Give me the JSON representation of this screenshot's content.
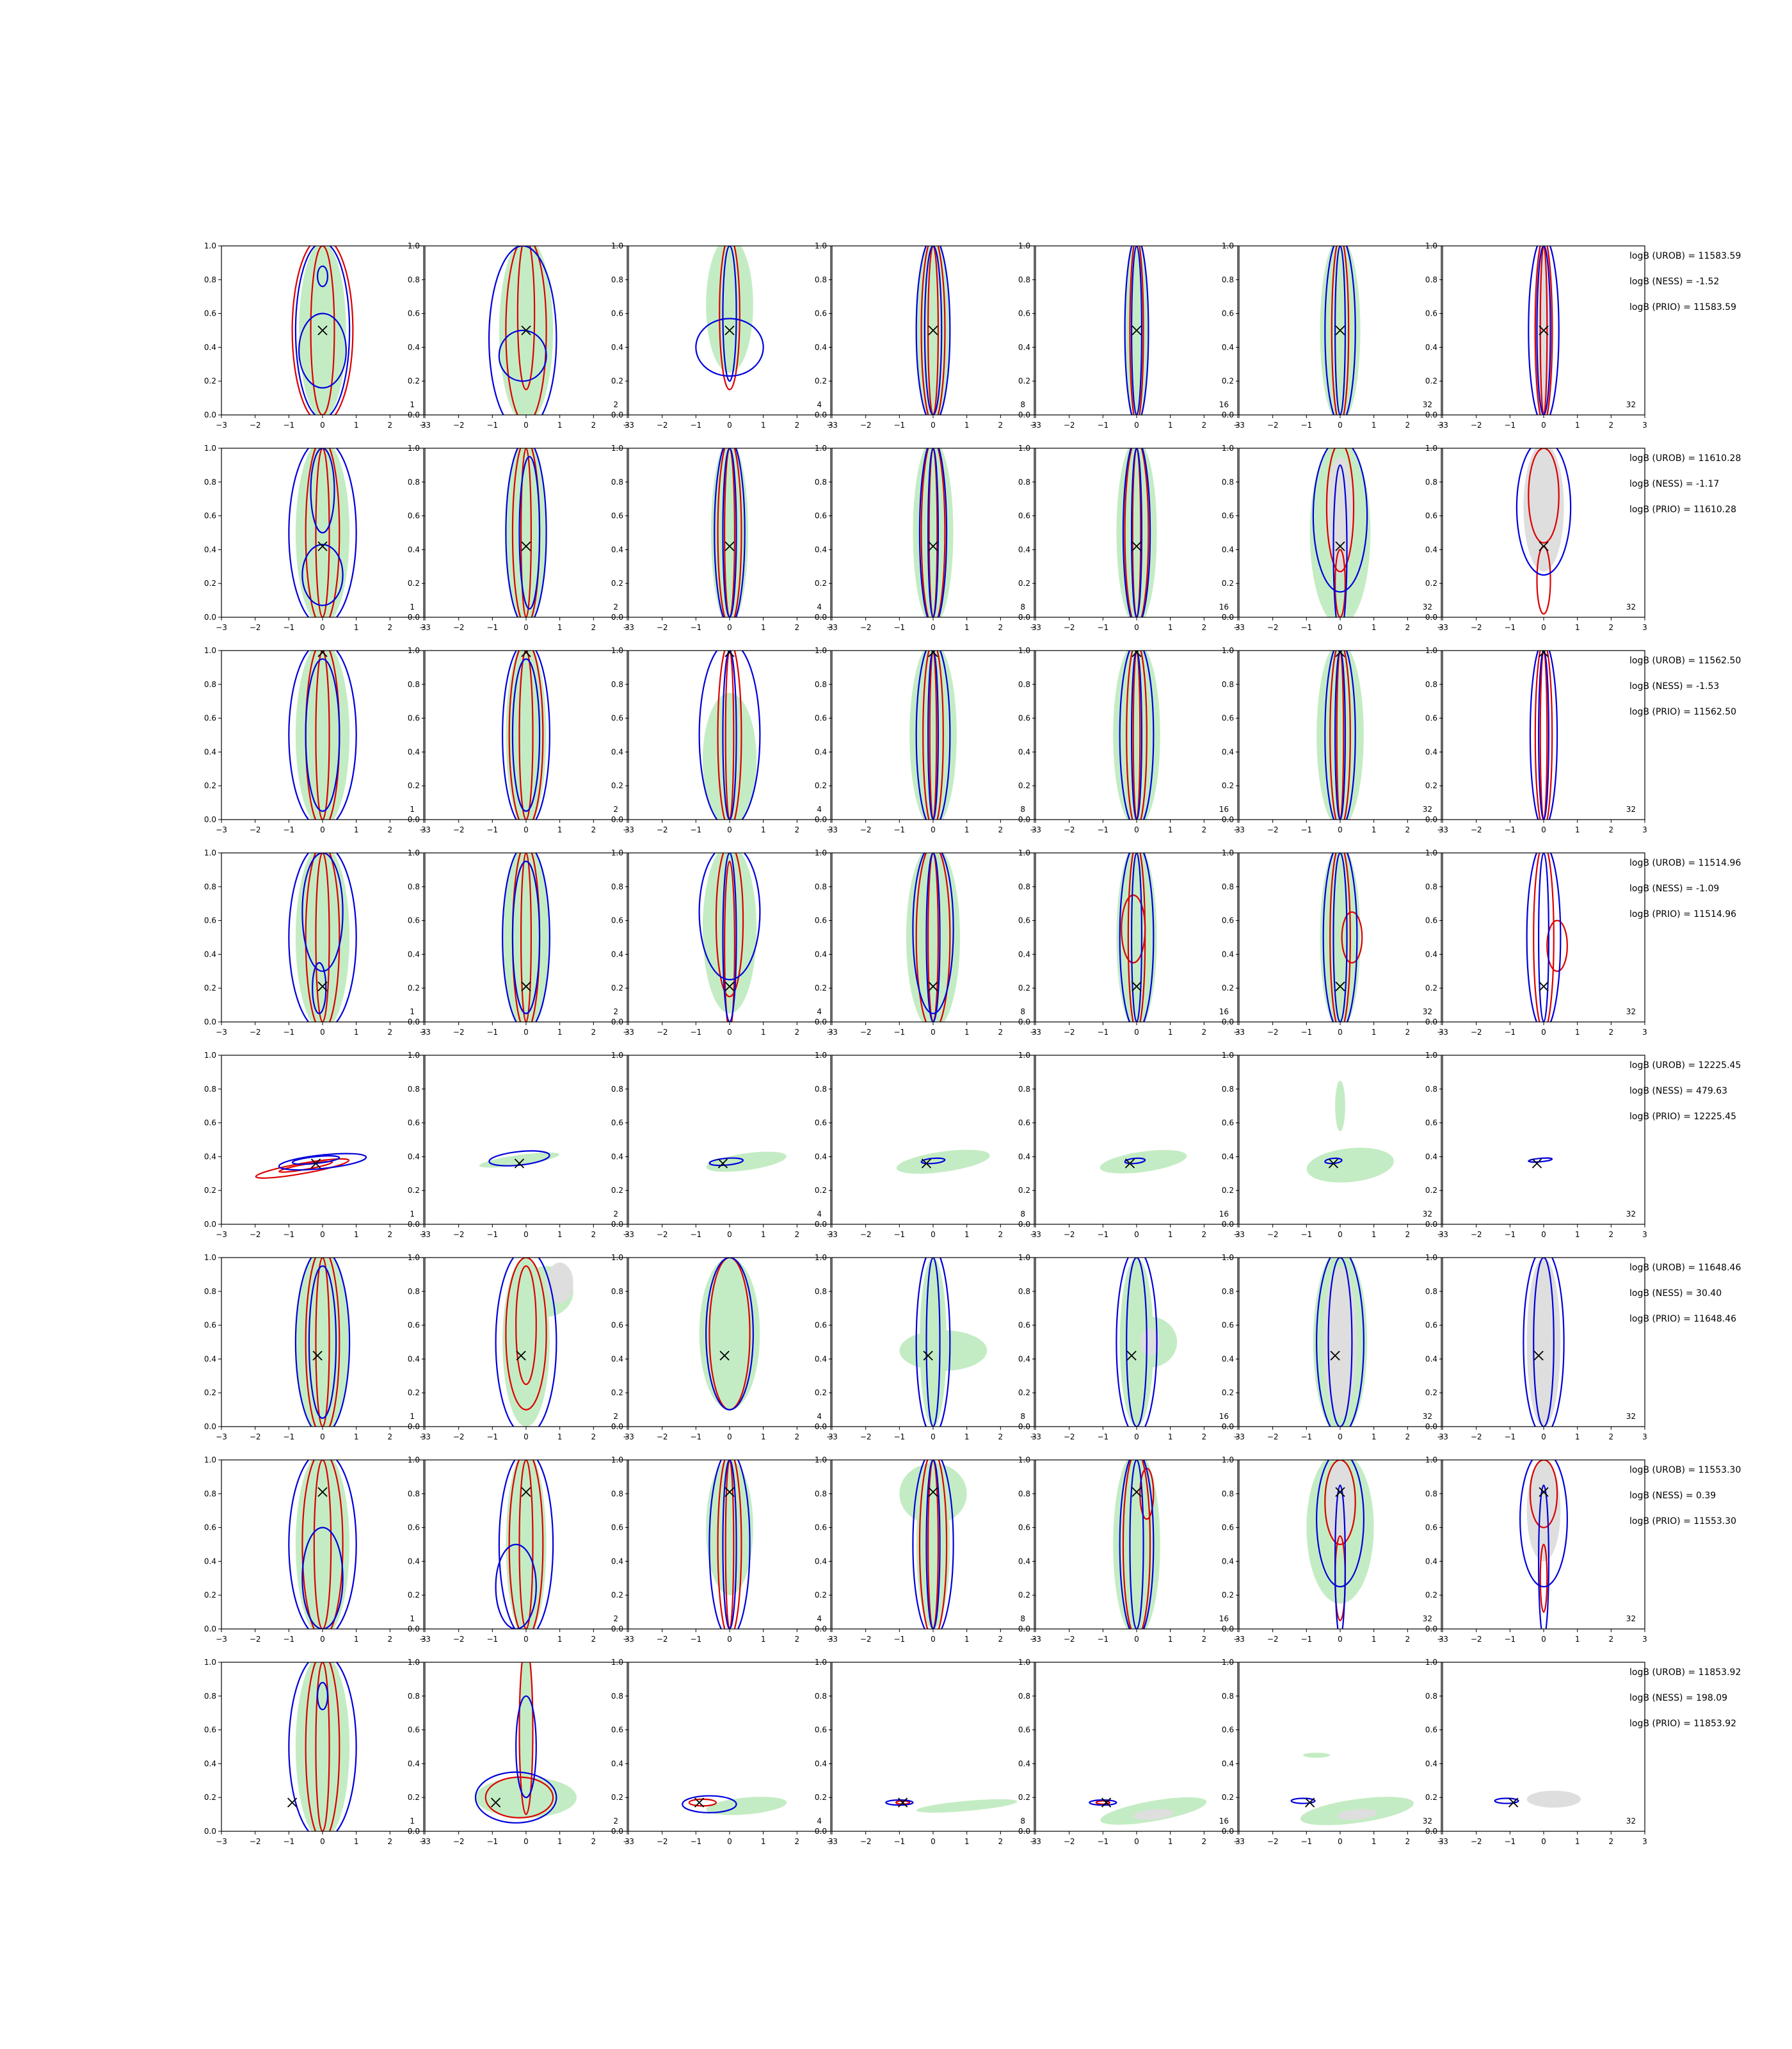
{
  "chart_data": {
    "type": "contour",
    "grid": {
      "rows": 8,
      "cols": 7
    },
    "xlim": [
      -3,
      3
    ],
    "ylim": [
      0.0,
      1.0
    ],
    "xticks": [
      "−3",
      "−2",
      "−1",
      "0",
      "1",
      "2",
      "3"
    ],
    "yticks": [
      "0.0",
      "0.2",
      "0.4",
      "0.6",
      "0.8",
      "1.0"
    ],
    "column_labels": [
      "1",
      "2",
      "4",
      "8",
      "16",
      "32",
      "32"
    ],
    "colors": {
      "red": "#dd0000",
      "blue": "#0000dd",
      "green_fill": "#c4ecc4",
      "green_dark": "#a9d8a9",
      "grey_fill": "#dedede",
      "marker": "#000000"
    },
    "rows": [
      {
        "truth": [
          0,
          0.5
        ],
        "stats": [
          "logB (UROB) = 11583.59",
          "logB (NESS) = -1.52",
          "logB (PRIO) = 11583.59"
        ]
      },
      {
        "truth": [
          0,
          0.42
        ],
        "stats": [
          "logB (UROB) = 11610.28",
          "logB (NESS) = -1.17",
          "logB (PRIO) = 11610.28"
        ]
      },
      {
        "truth": [
          0,
          0.99
        ],
        "stats": [
          "logB (UROB) = 11562.50",
          "logB (NESS) = -1.53",
          "logB (PRIO) = 11562.50"
        ]
      },
      {
        "truth": [
          0,
          0.21
        ],
        "stats": [
          "logB (UROB) = 11514.96",
          "logB (NESS) = -1.09",
          "logB (PRIO) = 11514.96"
        ]
      },
      {
        "truth": [
          -0.2,
          0.36
        ],
        "stats": [
          "logB (UROB) = 12225.45",
          "logB (NESS) = 479.63",
          "logB (PRIO) = 12225.45"
        ]
      },
      {
        "truth": [
          -0.15,
          0.42
        ],
        "stats": [
          "logB (UROB) = 11648.46",
          "logB (NESS) = 30.40",
          "logB (PRIO) = 11648.46"
        ]
      },
      {
        "truth": [
          0,
          0.81
        ],
        "stats": [
          "logB (UROB) = 11553.30",
          "logB (NESS) = 0.39",
          "logB (PRIO) = 11553.30"
        ]
      },
      {
        "truth": [
          -0.9,
          0.17
        ],
        "stats": [
          "logB (UROB) = 11853.92",
          "logB (NESS) = 198.09",
          "logB (PRIO) = 11853.92"
        ]
      }
    ]
  }
}
